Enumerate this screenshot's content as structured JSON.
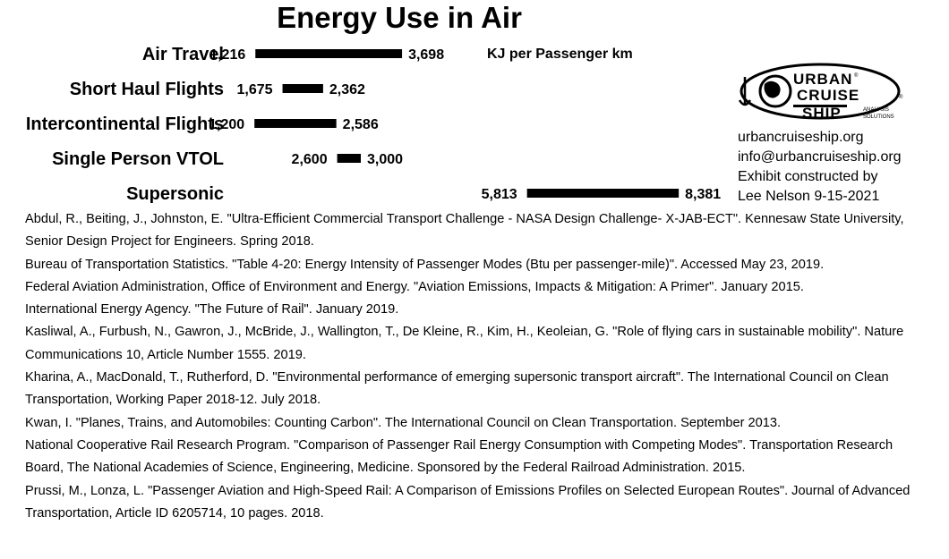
{
  "chart_data": {
    "type": "range-bar",
    "title": "Energy Use in Air",
    "unit_label": "KJ per Passenger km",
    "categories": [
      "Air Travel",
      "Short Haul Flights",
      "Intercontinental Flights",
      "Single Person VTOL",
      "Supersonic"
    ],
    "low_labels": [
      "1,216",
      "1,675",
      "1,200",
      "2,600",
      "5,813"
    ],
    "high_labels": [
      "3,698",
      "2,362",
      "2,586",
      "3,000",
      "8,381"
    ],
    "low": [
      1216,
      1675,
      1200,
      2600,
      5813
    ],
    "high": [
      3698,
      2362,
      2586,
      3000,
      8381
    ],
    "bar_color": "#000000"
  },
  "logo": {
    "word1": "URBAN",
    "word2": "CRUISE",
    "word3": "SHIP",
    "reg": "®",
    "sub1": "ANALYSIS",
    "sub2": "SOLUTIONS"
  },
  "contact": {
    "website": "urbancruiseship.org",
    "email": "info@urbancruiseship.org",
    "line3": "Exhibit constructed by",
    "line4": "Lee Nelson 9-15-2021"
  },
  "references": [
    "Abdul, R., Beiting, J., Johnston, E. \"Ultra-Efficient Commercial Transport Challenge - NASA Design Challenge- X-JAB-ECT\". Kennesaw State University, Senior Design Project for Engineers. Spring 2018.",
    "Bureau of Transportation Statistics. \"Table 4-20: Energy Intensity of Passenger Modes (Btu per passenger-mile)\". Accessed May 23, 2019.",
    "Federal Aviation Administration, Office of Environment and Energy. \"Aviation Emissions, Impacts & Mitigation: A Primer\". January 2015.",
    "International Energy Agency. \"The Future of Rail\". January 2019.",
    "Kasliwal, A., Furbush, N., Gawron, J., McBride, J., Wallington, T., De Kleine, R., Kim, H., Keoleian, G. \"Role of flying cars in sustainable mobility\". Nature Communications 10, Article Number 1555. 2019.",
    "Kharina, A., MacDonald, T., Rutherford, D. \"Environmental performance of emerging supersonic transport aircraft\". The International Council on Clean Transportation, Working Paper 2018-12. July 2018.",
    "Kwan, I. \"Planes, Trains, and Automobiles: Counting Carbon\". The International Council on Clean Transportation. September 2013.",
    "National Cooperative Rail Research Program. \"Comparison of Passenger Rail Energy Consumption with Competing Modes\". Transportation Research Board, The National Academies of Science, Engineering, Medicine. Sponsored by the Federal Railroad Administration. 2015.",
    "Prussi, M., Lonza, L. \"Passenger Aviation and High-Speed Rail: A Comparison of Emissions Profiles on Selected European Routes\". Journal of Advanced Transportation, Article ID 6205714, 10 pages. 2018."
  ]
}
